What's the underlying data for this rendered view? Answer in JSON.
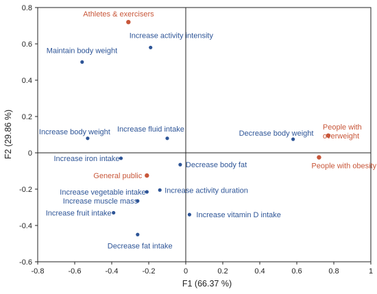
{
  "chart_data": {
    "type": "scatter",
    "title": "",
    "xlabel": "F1 (66.37 %)",
    "ylabel": "F2 (29.86 %)",
    "xlim": [
      -0.8,
      1.0
    ],
    "ylim": [
      -0.6,
      0.8
    ],
    "xticks": [
      "-0.8",
      "-0.6",
      "-0.4",
      "-0.2",
      "0",
      "0.2",
      "0.4",
      "0.6",
      "0.8",
      "1"
    ],
    "yticks": [
      "-0.6",
      "-0.4",
      "-0.2",
      "0",
      "0.2",
      "0.4",
      "0.6",
      "0.8"
    ],
    "grid": false,
    "colors": {
      "variables": "#2e5597",
      "groups": "#c8573a",
      "axis": "#222222"
    },
    "series": [
      {
        "points": [
          {
            "x": -0.19,
            "y": 0.58,
            "label": "Increase activity intensity"
          },
          {
            "x": -0.56,
            "y": 0.5,
            "label": "Maintain body weight"
          },
          {
            "x": -0.53,
            "y": 0.08,
            "label": "Increase body weight"
          },
          {
            "x": -0.1,
            "y": 0.08,
            "label": "Increase fluid intake"
          },
          {
            "x": -0.35,
            "y": -0.03,
            "label": "Increase iron intake"
          },
          {
            "x": -0.03,
            "y": -0.065,
            "label": "Decrease body fat"
          },
          {
            "x": -0.21,
            "y": -0.215,
            "label": "Increase vegetable intake"
          },
          {
            "x": -0.14,
            "y": -0.205,
            "label": "Increase activity duration"
          },
          {
            "x": -0.26,
            "y": -0.265,
            "label": "Increase muscle mass"
          },
          {
            "x": -0.39,
            "y": -0.33,
            "label": "Increase fruit intake"
          },
          {
            "x": 0.02,
            "y": -0.34,
            "label": "Increase vitamin D intake"
          },
          {
            "x": -0.26,
            "y": -0.45,
            "label": "Decrease fat intake"
          },
          {
            "x": 0.58,
            "y": 0.075,
            "label": "Decrease body weight"
          }
        ]
      },
      {
        "points": [
          {
            "x": -0.31,
            "y": 0.72,
            "label": "Athletes & exercisers"
          },
          {
            "x": -0.21,
            "y": -0.125,
            "label": "General public"
          },
          {
            "x": 0.77,
            "y": 0.095,
            "label": "People with overweight"
          },
          {
            "x": 0.72,
            "y": -0.025,
            "label": "People with obesity"
          }
        ]
      }
    ]
  }
}
